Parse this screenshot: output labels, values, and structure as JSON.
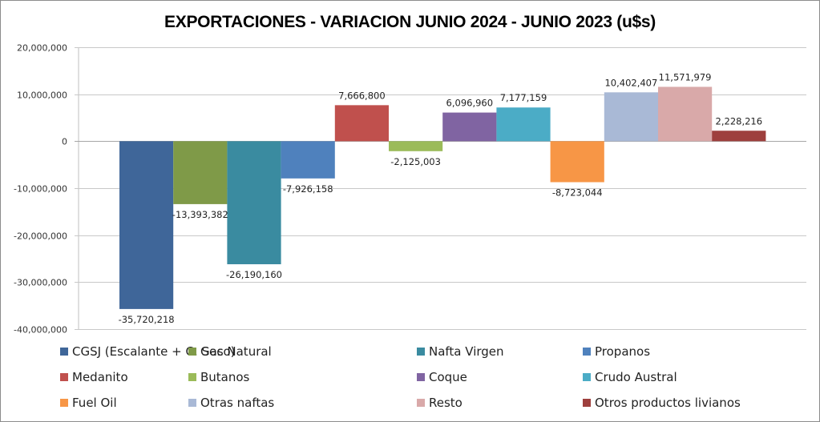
{
  "chart_data": {
    "type": "bar",
    "title": "EXPORTACIONES - VARIACION JUNIO 2024 - JUNIO 2023 (u$s)",
    "xlabel": "",
    "ylabel": "",
    "ylim": [
      -40000000,
      20000000
    ],
    "yticks": [
      20000000,
      10000000,
      0,
      -10000000,
      -20000000,
      -30000000,
      -40000000
    ],
    "ytick_labels": [
      "20,000,000",
      "10,000,000",
      "0",
      "-10,000,000",
      "-20,000,000",
      "-30,000,000",
      "-40,000,000"
    ],
    "grid": true,
    "legend_position": "bottom",
    "series": [
      {
        "name": "CGSJ (Escalante + C. Seco)",
        "value": -35720218,
        "label": "-35,720,218",
        "color": "#3F6699"
      },
      {
        "name": "Gas Natural",
        "value": -13393382,
        "label": "-13,393,382",
        "color": "#7F9A48"
      },
      {
        "name": "Nafta Virgen",
        "value": -26190160,
        "label": "-26,190,160",
        "color": "#3A8BA0"
      },
      {
        "name": "Propanos",
        "value": -7926158,
        "label": "-7,926,158",
        "color": "#4F81BD"
      },
      {
        "name": "Medanito",
        "value": 7666800,
        "label": "7,666,800",
        "color": "#C0504D"
      },
      {
        "name": "Butanos",
        "value": -2125003,
        "label": "-2,125,003",
        "color": "#9BBB59"
      },
      {
        "name": "Coque",
        "value": 6096960,
        "label": "6,096,960",
        "color": "#8064A2"
      },
      {
        "name": "Crudo Austral",
        "value": 7177159,
        "label": "7,177,159",
        "color": "#4BACC6"
      },
      {
        "name": "Fuel Oil",
        "value": -8723044,
        "label": "-8,723,044",
        "color": "#F79646"
      },
      {
        "name": "Otras naftas",
        "value": 10402407,
        "label": "10,402,407",
        "color": "#A9B9D6"
      },
      {
        "name": "Resto",
        "value": 11571979,
        "label": "11,571,979",
        "color": "#D9A9A9"
      },
      {
        "name": "Otros productos livianos",
        "value": 2228216,
        "label": "2,228,216",
        "color": "#9E3F3D"
      }
    ]
  }
}
